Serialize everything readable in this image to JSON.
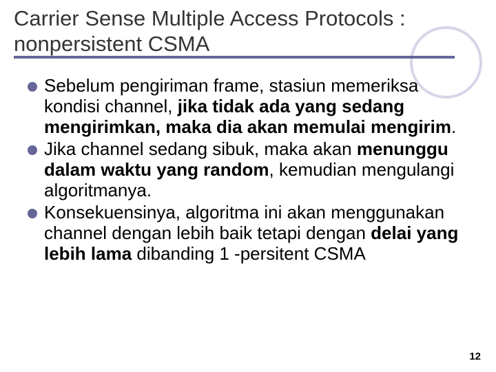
{
  "title": "Carrier Sense Multiple Access Protocols : nonpersistent CSMA",
  "accent_color": "#666699",
  "circle_color": "#d6d6e8",
  "title_fontsize": 31,
  "body_fontsize": 26,
  "bullets": [
    {
      "pre": "Sebelum pengiriman frame, stasiun memeriksa kondisi channel, ",
      "bold": "jika tidak ada yang sedang mengirimkan, maka dia akan memulai mengirim",
      "post": "."
    },
    {
      "pre": "Jika channel sedang sibuk, maka akan ",
      "bold": "menunggu dalam waktu yang random",
      "post": ", kemudian mengulangi algoritmanya."
    },
    {
      "pre": "Konsekuensinya, algoritma ini akan menggunakan channel dengan lebih baik tetapi dengan ",
      "bold": "delai yang lebih lama",
      "post": " dibanding 1 -persitent CSMA"
    }
  ],
  "page_number": "12"
}
